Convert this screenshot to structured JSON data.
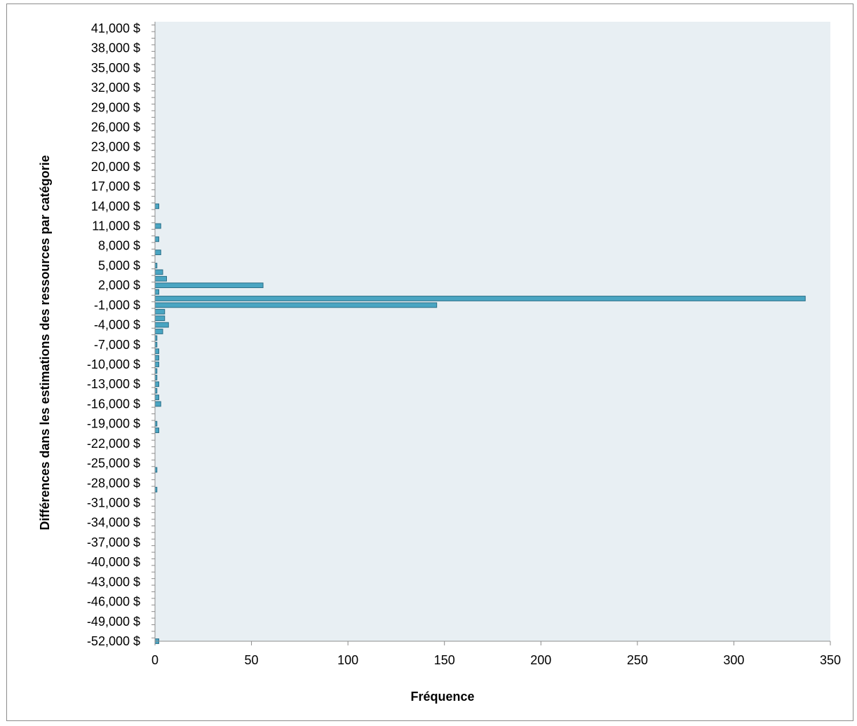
{
  "chart_data": {
    "type": "bar",
    "orientation": "horizontal",
    "title": "",
    "xlabel": "Fréquence",
    "ylabel": "Différences dans les estimations des ressources par catégorie",
    "xlim": [
      0,
      350
    ],
    "xticks": [
      0,
      50,
      100,
      150,
      200,
      250,
      300,
      350
    ],
    "ylim": [
      -52000,
      42000
    ],
    "bin_width": 1000,
    "ytick_labels": [
      {
        "value": 41000,
        "label": "41,000 $"
      },
      {
        "value": 38000,
        "label": "38,000 $"
      },
      {
        "value": 35000,
        "label": "35,000 $"
      },
      {
        "value": 32000,
        "label": "32,000 $"
      },
      {
        "value": 29000,
        "label": "29,000 $"
      },
      {
        "value": 26000,
        "label": "26,000 $"
      },
      {
        "value": 23000,
        "label": "23,000 $"
      },
      {
        "value": 20000,
        "label": "20,000 $"
      },
      {
        "value": 17000,
        "label": "17,000 $"
      },
      {
        "value": 14000,
        "label": "14,000 $"
      },
      {
        "value": 11000,
        "label": "11,000 $"
      },
      {
        "value": 8000,
        "label": "8,000 $"
      },
      {
        "value": 5000,
        "label": "5,000 $"
      },
      {
        "value": 2000,
        "label": "2,000 $"
      },
      {
        "value": -1000,
        "label": "-1,000 $"
      },
      {
        "value": -4000,
        "label": "-4,000 $"
      },
      {
        "value": -7000,
        "label": "-7,000 $"
      },
      {
        "value": -10000,
        "label": "-10,000 $"
      },
      {
        "value": -13000,
        "label": "-13,000 $"
      },
      {
        "value": -16000,
        "label": "-16,000 $"
      },
      {
        "value": -19000,
        "label": "-19,000 $"
      },
      {
        "value": -22000,
        "label": "-22,000 $"
      },
      {
        "value": -25000,
        "label": "-25,000 $"
      },
      {
        "value": -28000,
        "label": "-28,000 $"
      },
      {
        "value": -31000,
        "label": "-31,000 $"
      },
      {
        "value": -34000,
        "label": "-34,000 $"
      },
      {
        "value": -37000,
        "label": "-37,000 $"
      },
      {
        "value": -40000,
        "label": "-40,000 $"
      },
      {
        "value": -43000,
        "label": "-43,000 $"
      },
      {
        "value": -46000,
        "label": "-46,000 $"
      },
      {
        "value": -49000,
        "label": "-49,000 $"
      },
      {
        "value": -52000,
        "label": "-52,000 $"
      }
    ],
    "bars": [
      {
        "bin": 14000,
        "value": 2
      },
      {
        "bin": 11000,
        "value": 3
      },
      {
        "bin": 9000,
        "value": 2
      },
      {
        "bin": 7000,
        "value": 3
      },
      {
        "bin": 5000,
        "value": 1
      },
      {
        "bin": 4000,
        "value": 4
      },
      {
        "bin": 3000,
        "value": 6
      },
      {
        "bin": 2000,
        "value": 56
      },
      {
        "bin": 1000,
        "value": 2
      },
      {
        "bin": 0,
        "value": 337
      },
      {
        "bin": -1000,
        "value": 146
      },
      {
        "bin": -2000,
        "value": 5
      },
      {
        "bin": -3000,
        "value": 5
      },
      {
        "bin": -4000,
        "value": 7
      },
      {
        "bin": -5000,
        "value": 4
      },
      {
        "bin": -6000,
        "value": 1
      },
      {
        "bin": -7000,
        "value": 1
      },
      {
        "bin": -8000,
        "value": 2
      },
      {
        "bin": -9000,
        "value": 2
      },
      {
        "bin": -10000,
        "value": 2
      },
      {
        "bin": -11000,
        "value": 1
      },
      {
        "bin": -12000,
        "value": 1
      },
      {
        "bin": -13000,
        "value": 2
      },
      {
        "bin": -14000,
        "value": 1
      },
      {
        "bin": -15000,
        "value": 2
      },
      {
        "bin": -16000,
        "value": 3
      },
      {
        "bin": -19000,
        "value": 1
      },
      {
        "bin": -20000,
        "value": 2
      },
      {
        "bin": -26000,
        "value": 1
      },
      {
        "bin": -29000,
        "value": 1
      },
      {
        "bin": -52000,
        "value": 2
      }
    ],
    "grid": false,
    "legend": "none",
    "colors": {
      "bar_fill": "#4aa5c2",
      "bar_stroke": "#2a6e87",
      "plot_background": "#e8eff3",
      "axis": "#8c8c8c"
    }
  }
}
